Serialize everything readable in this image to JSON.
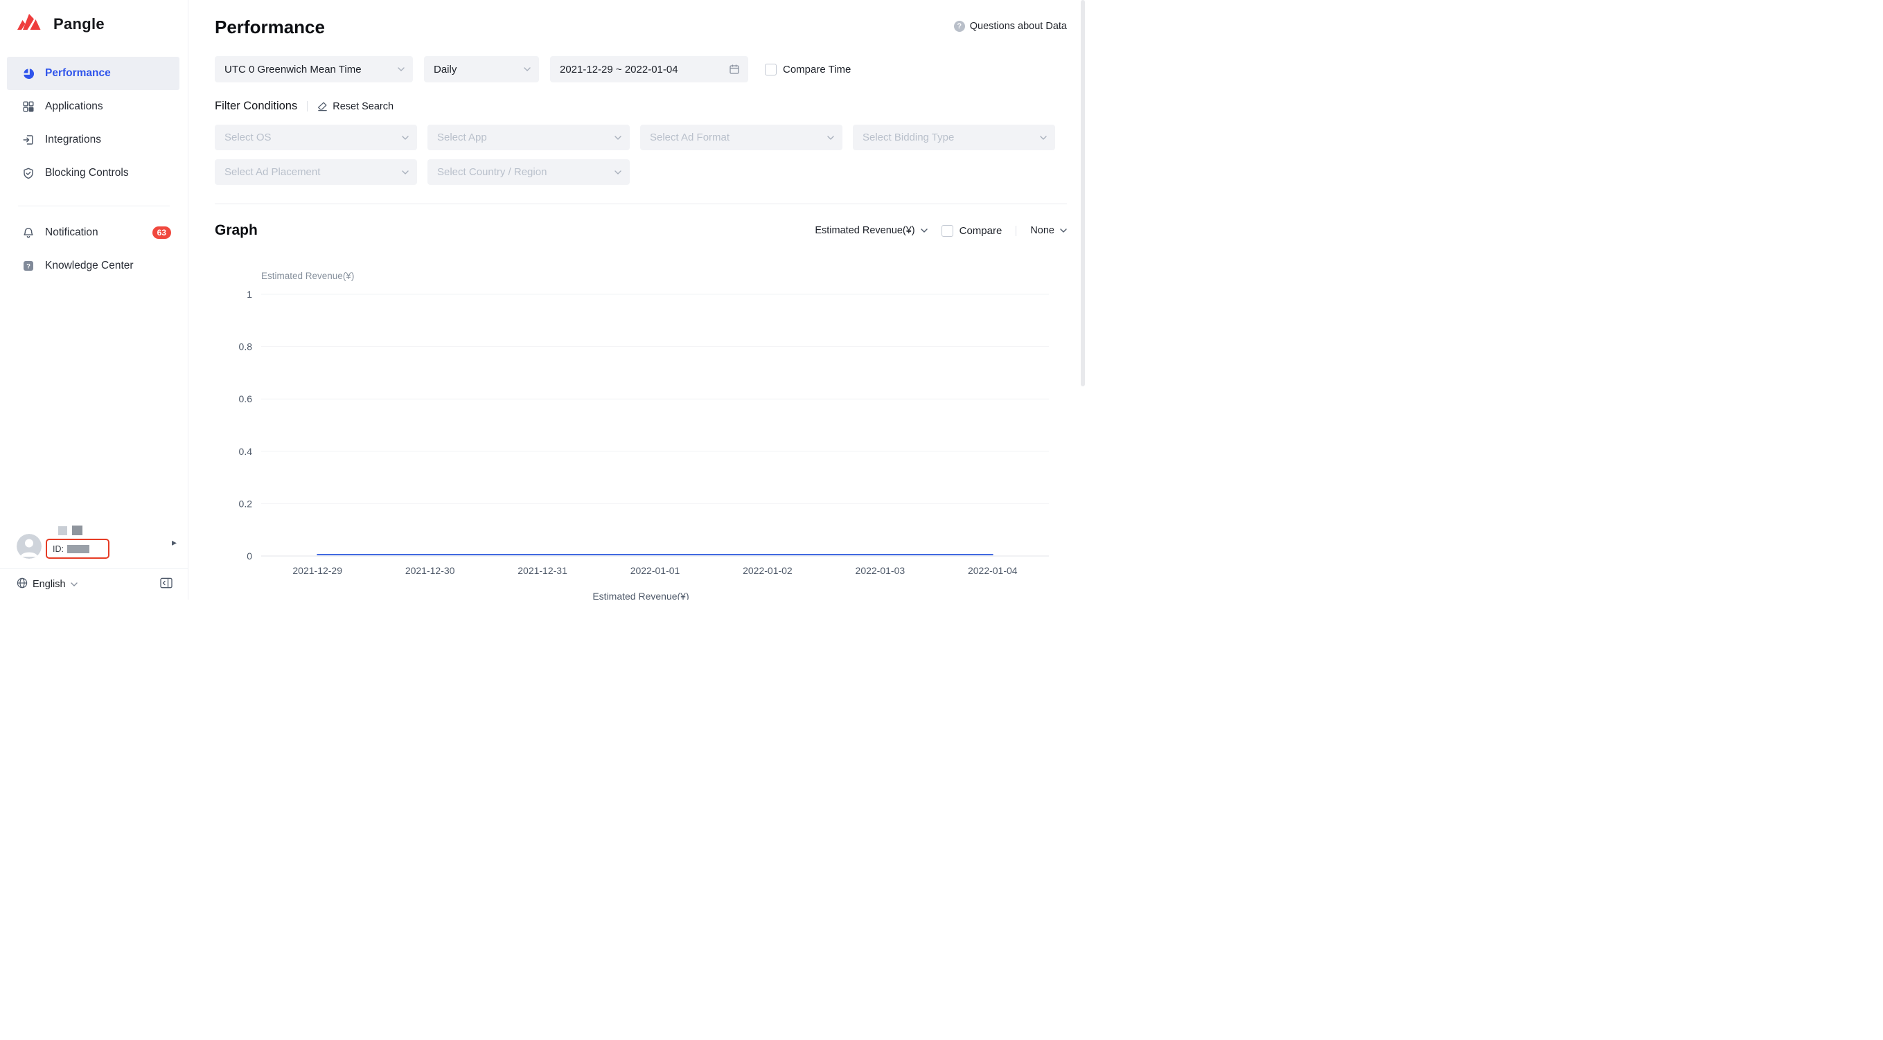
{
  "brand": {
    "name": "Pangle"
  },
  "colors": {
    "accent_blue": "#2F54EB",
    "brand_red": "#EE3D3D",
    "badge_red": "#F0483E",
    "line_blue": "#4169E1"
  },
  "sidebar": {
    "items": [
      {
        "label": "Performance"
      },
      {
        "label": "Applications"
      },
      {
        "label": "Integrations"
      },
      {
        "label": "Blocking Controls"
      },
      {
        "label": "Notification",
        "badge": "63"
      },
      {
        "label": "Knowledge Center"
      }
    ],
    "user": {
      "id_label": "ID:"
    },
    "language": "English"
  },
  "header": {
    "title": "Performance",
    "help_link": "Questions about Data"
  },
  "filters": {
    "timezone": "UTC 0 Greenwich Mean Time",
    "granularity": "Daily",
    "date_range": "2021-12-29 ~ 2022-01-04",
    "compare_time_label": "Compare Time",
    "section_label": "Filter Conditions",
    "reset_label": "Reset Search",
    "selects": [
      "Select OS",
      "Select App",
      "Select Ad Format",
      "Select Bidding Type",
      "Select Ad Placement",
      "Select Country / Region"
    ]
  },
  "graph": {
    "title": "Graph",
    "metric": "Estimated Revenue(¥)",
    "compare_label": "Compare",
    "secondary_metric": "None"
  },
  "chart_data": {
    "type": "line",
    "ylabel": "Estimated Revenue(¥)",
    "x": [
      "2021-12-29",
      "2021-12-30",
      "2021-12-31",
      "2022-01-01",
      "2022-01-02",
      "2022-01-03",
      "2022-01-04"
    ],
    "series": [
      {
        "name": "Estimated Revenue(¥)",
        "values": [
          0,
          0,
          0,
          0,
          0,
          0,
          0
        ]
      }
    ],
    "ylim": [
      0,
      1
    ],
    "yticks": [
      0,
      0.2,
      0.4,
      0.6,
      0.8,
      1
    ],
    "grid": true,
    "legend_position": "bottom",
    "line_color": "#4169E1"
  }
}
